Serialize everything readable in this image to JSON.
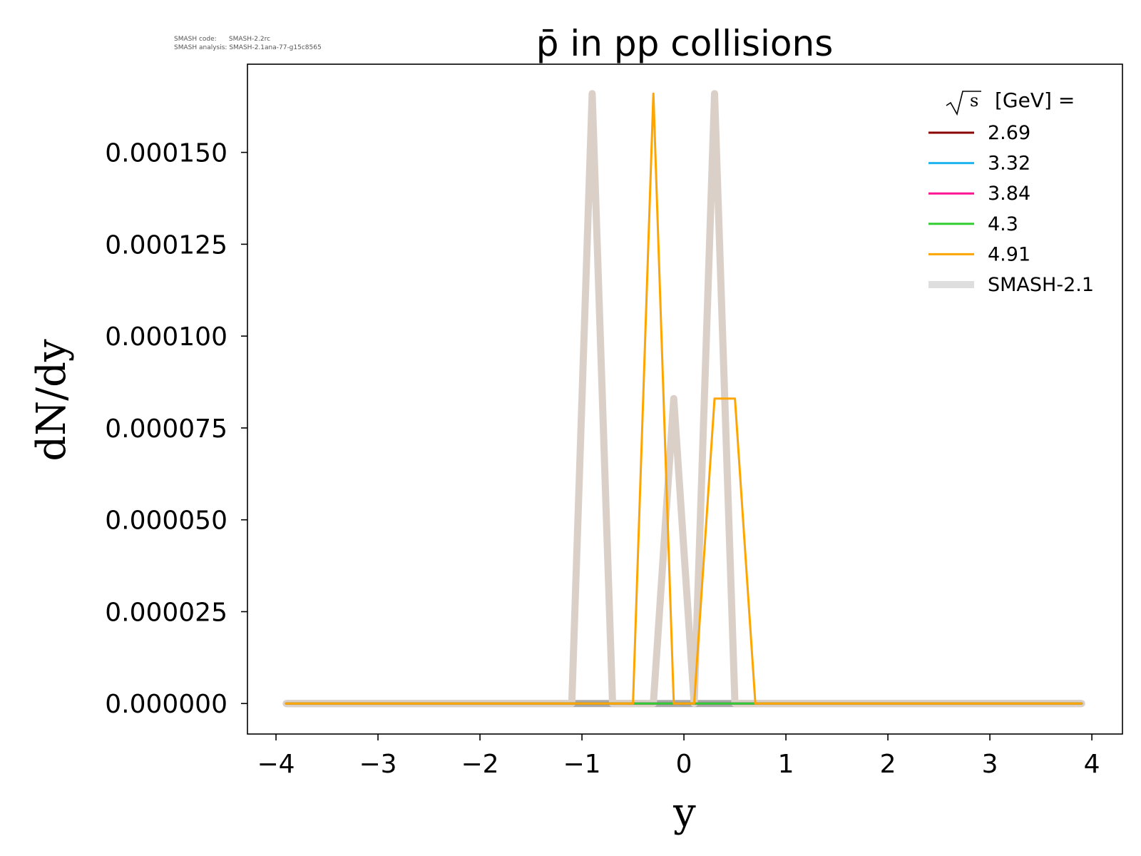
{
  "version_info": {
    "code_label": "SMASH code:",
    "code_value": "SMASH-2.2rc",
    "analysis_label": "SMASH analysis:",
    "analysis_value": "SMASH-2.1ana-77-g15c8565"
  },
  "chart_data": {
    "type": "line",
    "title": "p̄ in pp collisions",
    "xlabel": "y",
    "ylabel": "dN/dy",
    "xlim": [
      -4.28,
      4.3
    ],
    "ylim": [
      -8.3e-06,
      0.000174
    ],
    "x_ticks": [
      -4,
      -3,
      -2,
      -1,
      0,
      1,
      2,
      3,
      4
    ],
    "x_tick_labels": [
      "−4",
      "−3",
      "−2",
      "−1",
      "0",
      "1",
      "2",
      "3",
      "4"
    ],
    "y_ticks": [
      0,
      2.5e-05,
      5e-05,
      7.5e-05,
      0.0001,
      0.000125,
      0.00015
    ],
    "y_tick_labels": [
      "0.000000",
      "0.000025",
      "0.000050",
      "0.000075",
      "0.000100",
      "0.000125",
      "0.000150"
    ],
    "grid": false,
    "legend": {
      "placement": "top-right",
      "title_sqrt": "s",
      "title_rest": "[GeV] ="
    },
    "x": [
      -3.9,
      -3.7,
      -3.5,
      -3.3,
      -3.1,
      -2.9,
      -2.7,
      -2.5,
      -2.3,
      -2.1,
      -1.9,
      -1.7,
      -1.5,
      -1.3,
      -1.1,
      -0.9,
      -0.7,
      -0.5,
      -0.3,
      -0.1,
      0.1,
      0.3,
      0.5,
      0.7,
      0.9,
      1.1,
      1.3,
      1.5,
      1.7,
      1.9,
      2.1,
      2.3,
      2.5,
      2.7,
      2.9,
      3.1,
      3.3,
      3.5,
      3.7,
      3.9
    ],
    "series": [
      {
        "name": "SMASH-2.1",
        "color": "#dbd0c8",
        "legend_color": "#dedede",
        "width": 10,
        "values": [
          0,
          0,
          0,
          0,
          0,
          0,
          0,
          0,
          0,
          0,
          0,
          0,
          0,
          0,
          0,
          0.000166,
          0,
          0,
          0,
          8.3e-05,
          0,
          0.000166,
          0,
          0,
          0,
          0,
          0,
          0,
          0,
          0,
          0,
          0,
          0,
          0,
          0,
          0,
          0,
          0,
          0,
          0
        ]
      },
      {
        "name": "2.69",
        "color": "#8b0000",
        "width": 3,
        "values": [
          0,
          0,
          0,
          0,
          0,
          0,
          0,
          0,
          0,
          0,
          0,
          0,
          0,
          0,
          0,
          0,
          0,
          0,
          0,
          0,
          0,
          0,
          0,
          0,
          0,
          0,
          0,
          0,
          0,
          0,
          0,
          0,
          0,
          0,
          0,
          0,
          0,
          0,
          0,
          0
        ]
      },
      {
        "name": "3.32",
        "color": "#1eb4f0",
        "width": 3,
        "values": [
          0,
          0,
          0,
          0,
          0,
          0,
          0,
          0,
          0,
          0,
          0,
          0,
          0,
          0,
          0,
          0,
          0,
          0,
          0,
          0,
          0,
          0,
          0,
          0,
          0,
          0,
          0,
          0,
          0,
          0,
          0,
          0,
          0,
          0,
          0,
          0,
          0,
          0,
          0,
          0
        ]
      },
      {
        "name": "3.84",
        "color": "#ff1493",
        "width": 3,
        "values": [
          0,
          0,
          0,
          0,
          0,
          0,
          0,
          0,
          0,
          0,
          0,
          0,
          0,
          0,
          0,
          0,
          0,
          0,
          0,
          0,
          0,
          0,
          0,
          0,
          0,
          0,
          0,
          0,
          0,
          0,
          0,
          0,
          0,
          0,
          0,
          0,
          0,
          0,
          0,
          0
        ]
      },
      {
        "name": "4.3",
        "color": "#32cd32",
        "width": 3,
        "values": [
          0,
          0,
          0,
          0,
          0,
          0,
          0,
          0,
          0,
          0,
          0,
          0,
          0,
          0,
          0,
          0,
          0,
          0,
          0,
          0,
          0,
          0,
          0,
          0,
          0,
          0,
          0,
          0,
          0,
          0,
          0,
          0,
          0,
          0,
          0,
          0,
          0,
          0,
          0,
          0
        ]
      },
      {
        "name": "4.91",
        "color": "#ffa500",
        "width": 3,
        "values": [
          0,
          0,
          0,
          0,
          0,
          0,
          0,
          0,
          0,
          0,
          0,
          0,
          0,
          0,
          0,
          0,
          0,
          0,
          0.000166,
          0,
          0,
          8.3e-05,
          8.3e-05,
          0,
          0,
          0,
          0,
          0,
          0,
          0,
          0,
          0,
          0,
          0,
          0,
          0,
          0,
          0,
          0,
          0
        ]
      }
    ],
    "draw_order": [
      "SMASH-2.1",
      "2.69",
      "3.32",
      "3.84",
      "4.3",
      "4.91"
    ],
    "legend_order": [
      "2.69",
      "3.32",
      "3.84",
      "4.3",
      "4.91",
      "SMASH-2.1"
    ],
    "baseline_color": "#a9a9a9"
  }
}
